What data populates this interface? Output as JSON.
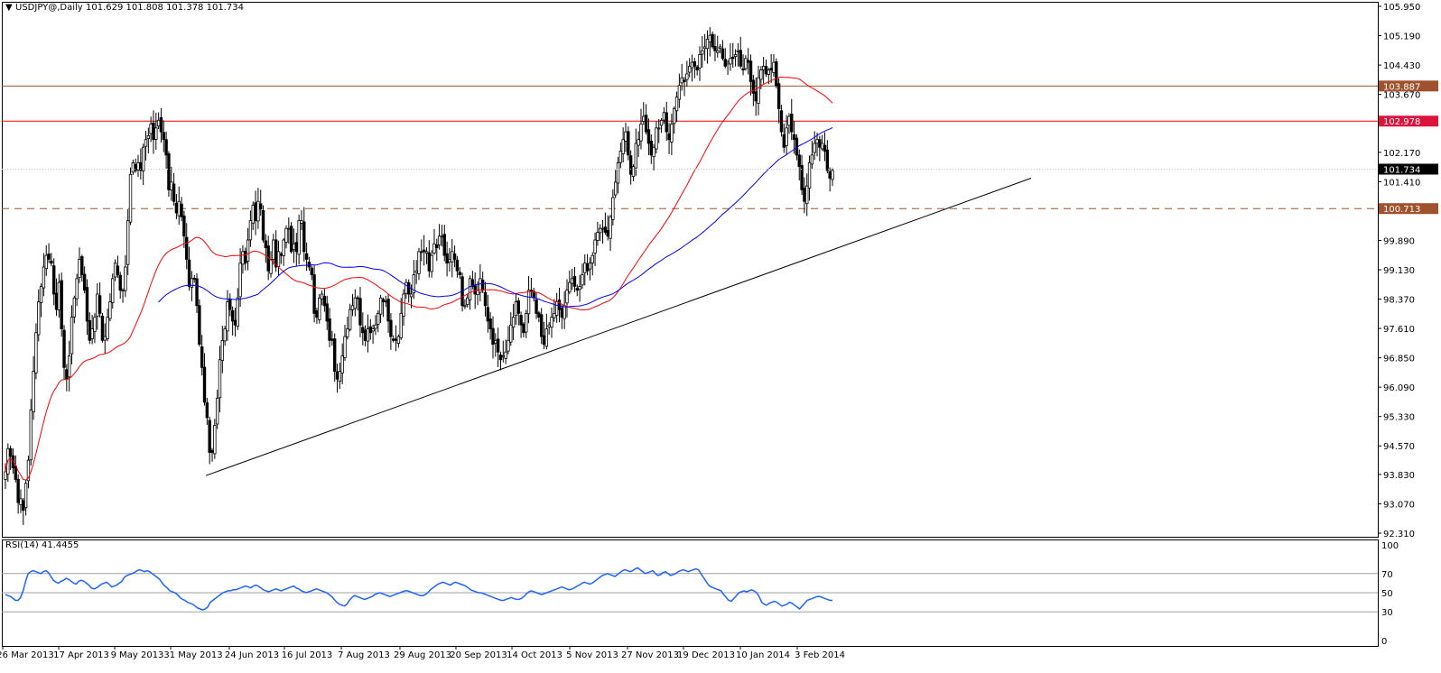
{
  "header": {
    "symbol_label": "USDJPY@,Daily",
    "ohlc_label": "101.629 101.808 101.378 101.734",
    "rsi_label": "RSI(14) 41.4455"
  },
  "chart_data": [
    {
      "type": "candlestick",
      "title": "USDJPY@,Daily",
      "ohlc": {
        "open": 101.629,
        "high": 101.808,
        "low": 101.378,
        "close": 101.734
      },
      "x_tick_labels": [
        "26 Mar 2013",
        "17 Apr 2013",
        "9 May 2013",
        "31 May 2013",
        "24 Jun 2013",
        "16 Jul 2013",
        "7 Aug 2013",
        "29 Aug 2013",
        "20 Sep 2013",
        "14 Oct 2013",
        "5 Nov 2013",
        "27 Nov 2013",
        "19 Dec 2013",
        "10 Jan 2014",
        "3 Feb 2014"
      ],
      "y_tick_labels": [
        "105.950",
        "105.190",
        "104.430",
        "103.670",
        "102.170",
        "101.410",
        "99.890",
        "99.130",
        "98.370",
        "97.610",
        "96.850",
        "96.090",
        "95.330",
        "94.570",
        "93.830",
        "93.070",
        "92.310"
      ],
      "ylim": [
        92.31,
        105.95
      ],
      "price_labels": [
        {
          "value": "103.887",
          "color": "#a0522d"
        },
        {
          "value": "102.978",
          "color": "#dc143c"
        },
        {
          "value": "101.734",
          "color": "#000000"
        },
        {
          "value": "100.713",
          "color": "#a0522d"
        }
      ],
      "horizontal_levels": [
        {
          "price": 103.887,
          "style": "solid",
          "color": "#a0522d"
        },
        {
          "price": 102.978,
          "style": "solid",
          "color": "#ff0000"
        },
        {
          "price": 100.713,
          "style": "dashed",
          "color": "#a0522d"
        }
      ],
      "trendline": {
        "from": [
          93.8,
          "31 May 2013"
        ],
        "to": [
          101.5,
          "Mar 2014"
        ],
        "color": "#000000"
      },
      "moving_averages": [
        {
          "color": "#ff0000"
        },
        {
          "color": "#0000ff"
        }
      ],
      "candles": [
        93.9,
        94.5,
        94.3,
        94.0,
        93.7,
        93.1,
        93.2,
        92.9,
        93.6,
        94.2,
        95.5,
        96.5,
        97.5,
        98.3,
        98.7,
        99.2,
        99.5,
        99.4,
        99.3,
        98.5,
        98.1,
        98.8,
        97.6,
        96.6,
        96.3,
        96.9,
        97.9,
        98.4,
        98.9,
        99.4,
        99.0,
        98.6,
        97.8,
        97.3,
        97.6,
        97.9,
        98.5,
        98.0,
        97.3,
        97.4,
        97.9,
        98.3,
        98.9,
        99.3,
        99.0,
        98.6,
        98.6,
        99.2,
        100.4,
        101.6,
        101.9,
        101.7,
        101.9,
        101.7,
        102.3,
        102.5,
        102.6,
        102.9,
        102.5,
        102.8,
        103.0,
        102.7,
        102.5,
        102.1,
        101.2,
        101.4,
        100.9,
        100.6,
        100.9,
        100.5,
        100.0,
        99.4,
        98.7,
        98.9,
        98.9,
        98.2,
        97.2,
        96.6,
        95.7,
        95.3,
        94.4,
        94.4,
        95.1,
        95.8,
        96.8,
        97.3,
        97.6,
        98.3,
        98.1,
        97.8,
        97.7,
        98.4,
        99.3,
        99.6,
        99.3,
        99.9,
        100.4,
        100.8,
        100.4,
        100.9,
        100.7,
        99.9,
        99.7,
        99.1,
        99.4,
        99.9,
        99.2,
        99.6,
        99.5,
        99.9,
        100.2,
        100.2,
        99.6,
        99.8,
        99.6,
        100.4,
        100.4,
        99.6,
        99.4,
        99.2,
        99.0,
        98.0,
        97.9,
        98.4,
        98.5,
        98.2,
        97.8,
        97.3,
        97.3,
        96.5,
        96.3,
        96.5,
        96.9,
        97.4,
        97.6,
        98.1,
        98.2,
        98.4,
        98.4,
        97.7,
        97.5,
        97.3,
        97.6,
        97.5,
        97.6,
        97.7,
        98.0,
        98.4,
        98.3,
        98.3,
        97.8,
        97.4,
        97.3,
        97.3,
        97.4,
        98.0,
        98.5,
        98.8,
        98.5,
        98.5,
        99.0,
        99.1,
        99.6,
        99.6,
        99.6,
        99.6,
        99.1,
        99.5,
        99.8,
        99.7,
        100.0,
        100.0,
        99.5,
        99.3,
        99.4,
        99.6,
        99.4,
        99.1,
        99.0,
        98.2,
        98.2,
        98.4,
        98.9,
        98.7,
        98.5,
        98.6,
        98.9,
        98.6,
        98.2,
        97.8,
        97.6,
        97.2,
        97.3,
        97.0,
        96.8,
        96.9,
        97.0,
        97.3,
        97.7,
        97.9,
        98.3,
        98.0,
        97.7,
        97.5,
        98.0,
        98.6,
        98.6,
        98.4,
        98.0,
        97.9,
        97.4,
        97.2,
        97.6,
        97.7,
        97.9,
        98.0,
        98.3,
        98.1,
        97.9,
        98.2,
        98.6,
        98.8,
        98.9,
        98.7,
        98.6,
        98.7,
        99.0,
        99.3,
        99.1,
        99.3,
        99.5,
        99.9,
        100.1,
        100.2,
        100.2,
        100.1,
        100.0,
        100.5,
        101.0,
        101.4,
        101.9,
        102.2,
        102.5,
        102.7,
        102.1,
        101.6,
        101.8,
        102.4,
        102.5,
        102.9,
        103.1,
        102.7,
        102.4,
        102.1,
        102.3,
        102.8,
        102.8,
        103.0,
        103.2,
        102.7,
        102.5,
        102.9,
        103.3,
        103.6,
        103.9,
        104.1,
        104.0,
        104.2,
        104.4,
        104.5,
        104.4,
        104.3,
        104.7,
        104.8,
        104.9,
        105.1,
        105.2,
        104.9,
        104.8,
        104.8,
        104.9,
        104.6,
        104.4,
        104.5,
        104.6,
        104.6,
        104.7,
        104.8,
        104.4,
        104.3,
        104.6,
        104.5,
        104.0,
        103.7,
        103.5,
        104.1,
        104.3,
        104.4,
        104.2,
        104.3,
        104.3,
        104.5,
        103.9,
        103.3,
        102.7,
        102.3,
        102.8,
        103.1,
        102.7,
        102.5,
        102.1,
        101.8,
        101.2,
        100.9,
        101.3,
        101.9,
        102.1,
        102.4,
        102.5,
        102.3,
        102.4,
        102.2,
        101.7,
        101.5,
        101.7
      ]
    },
    {
      "type": "line",
      "title": "RSI(14) 41.4455",
      "ylim": [
        0,
        100
      ],
      "y_tick_labels": [
        "100",
        "70",
        "50",
        "30",
        "0"
      ],
      "levels": [
        70,
        50,
        30
      ],
      "series": [
        {
          "values": [
            48,
            47,
            46,
            44,
            42,
            42,
            45,
            52,
            62,
            70,
            72,
            73,
            72,
            71,
            70,
            72,
            73,
            71,
            67,
            63,
            61,
            60,
            62,
            63,
            65,
            64,
            62,
            60,
            59,
            62,
            63,
            62,
            60,
            58,
            55,
            54,
            55,
            57,
            59,
            60,
            61,
            59,
            56,
            57,
            58,
            60,
            62,
            66,
            68,
            69,
            70,
            71,
            73,
            74,
            73,
            72,
            73,
            72,
            70,
            68,
            66,
            64,
            60,
            57,
            55,
            52,
            51,
            50,
            48,
            45,
            43,
            42,
            40,
            39,
            38,
            36,
            34,
            33,
            32,
            33,
            35,
            40,
            42,
            44,
            46,
            48,
            50,
            51,
            52,
            52,
            53,
            53,
            54,
            55,
            56,
            57,
            56,
            55,
            57,
            58,
            57,
            55,
            53,
            52,
            51,
            52,
            53,
            54,
            53,
            52,
            53,
            54,
            55,
            56,
            57,
            55,
            54,
            52,
            51,
            50,
            51,
            52,
            53,
            54,
            53,
            52,
            51,
            50,
            48,
            46,
            43,
            40,
            38,
            37,
            36,
            38,
            42,
            45,
            47,
            46,
            45,
            44,
            43,
            44,
            45,
            46,
            48,
            49,
            50,
            49,
            48,
            47,
            46,
            47,
            48,
            49,
            50,
            51,
            52,
            52,
            51,
            50,
            49,
            48,
            47,
            47,
            48,
            50,
            53,
            55,
            57,
            59,
            60,
            61,
            60,
            59,
            58,
            60,
            61,
            60,
            59,
            58,
            57,
            55,
            53,
            52,
            51,
            50,
            50,
            49,
            48,
            47,
            46,
            45,
            44,
            43,
            42,
            42,
            43,
            44,
            45,
            44,
            43,
            43,
            44,
            46,
            49,
            51,
            52,
            51,
            50,
            49,
            48,
            49,
            50,
            51,
            52,
            53,
            54,
            55,
            56,
            55,
            54,
            53,
            54,
            55,
            57,
            58,
            60,
            61,
            60,
            59,
            60,
            62,
            64,
            66,
            68,
            69,
            70,
            69,
            68,
            67,
            69,
            71,
            73,
            74,
            73,
            72,
            73,
            75,
            76,
            74,
            72,
            70,
            71,
            72,
            73,
            70,
            68,
            69,
            71,
            72,
            70,
            68,
            69,
            70,
            72,
            73,
            74,
            73,
            72,
            73,
            74,
            75,
            74,
            70,
            66,
            62,
            58,
            56,
            55,
            54,
            53,
            52,
            48,
            45,
            42,
            41,
            44,
            47,
            50,
            51,
            52,
            51,
            52,
            53,
            52,
            50,
            46,
            40,
            38,
            37,
            39,
            40,
            41,
            40,
            38,
            36,
            37,
            38,
            40,
            39,
            37,
            35,
            33,
            36,
            39,
            42,
            43,
            44,
            45,
            46,
            46,
            45,
            44,
            43,
            42,
            42
          ]
        }
      ]
    }
  ]
}
